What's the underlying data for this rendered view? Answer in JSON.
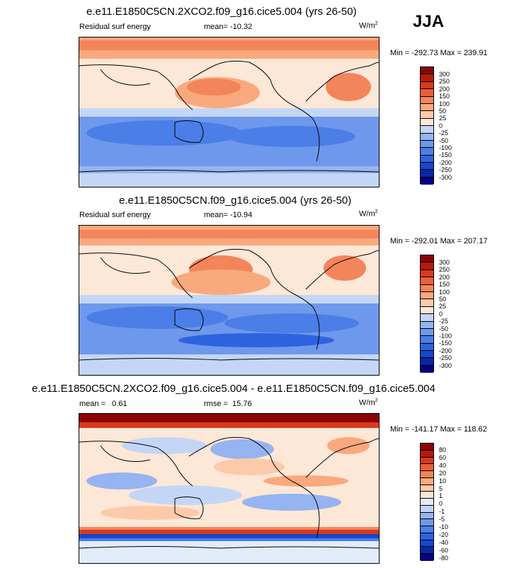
{
  "season": "JJA",
  "units_base": "W/m",
  "units_exp": "2",
  "colors": {
    "main": [
      "#0a007f",
      "#0827a8",
      "#1547cf",
      "#2e63e0",
      "#4b7ee6",
      "#6e98ec",
      "#96b4f1",
      "#c4d6f6",
      "#fde7d6",
      "#fccaaa",
      "#f9a97d",
      "#f3855a",
      "#e9603a",
      "#d83a1d",
      "#b51a0b",
      "#8a0404"
    ],
    "diff": [
      "#0a007f",
      "#0827a8",
      "#1547cf",
      "#2e63e0",
      "#4b7ee6",
      "#6e98ec",
      "#96b4f1",
      "#c4d6f6",
      "#e1ebfa",
      "#fde7d6",
      "#fccaaa",
      "#f9a97d",
      "#f3855a",
      "#e9603a",
      "#d83a1d",
      "#b51a0b",
      "#8a0404"
    ]
  },
  "panels": [
    {
      "title": "e.e11.E1850C5CN.2XCO2.f09_g16.cice5.004 (yrs 26-50)",
      "left_label": "Residual surf energy",
      "center_label": "mean= -10.32",
      "minmax": "Min = -292.73 Max = 239.91",
      "levels": [
        "300",
        "250",
        "200",
        "150",
        "100",
        "50",
        "25",
        "0",
        "-25",
        "-50",
        "-100",
        "-150",
        "-200",
        "-250",
        "-300"
      ]
    },
    {
      "title": "e.e11.E1850C5CN.f09_g16.cice5.004 (yrs 26-50)",
      "left_label": "Residual surf energy",
      "center_label": "mean= -10.94",
      "minmax": "Min = -292.01 Max = 207.17",
      "levels": [
        "300",
        "250",
        "200",
        "150",
        "100",
        "50",
        "25",
        "0",
        "-25",
        "-50",
        "-100",
        "-150",
        "-200",
        "-250",
        "-300"
      ]
    },
    {
      "title": "e.e11.E1850C5CN.2XCO2.f09_g16.cice5.004 - e.e11.E1850C5CN.f09_g16.cice5.004",
      "left_label": "mean =   0.61",
      "center_label": "rmse =  15.76",
      "minmax": "Min = -141.17 Max = 118.62",
      "levels": [
        "80",
        "60",
        "40",
        "20",
        "10",
        "5",
        "1",
        "0",
        "-1",
        "-5",
        "-10",
        "-20",
        "-40",
        "-60",
        "-80"
      ]
    }
  ]
}
